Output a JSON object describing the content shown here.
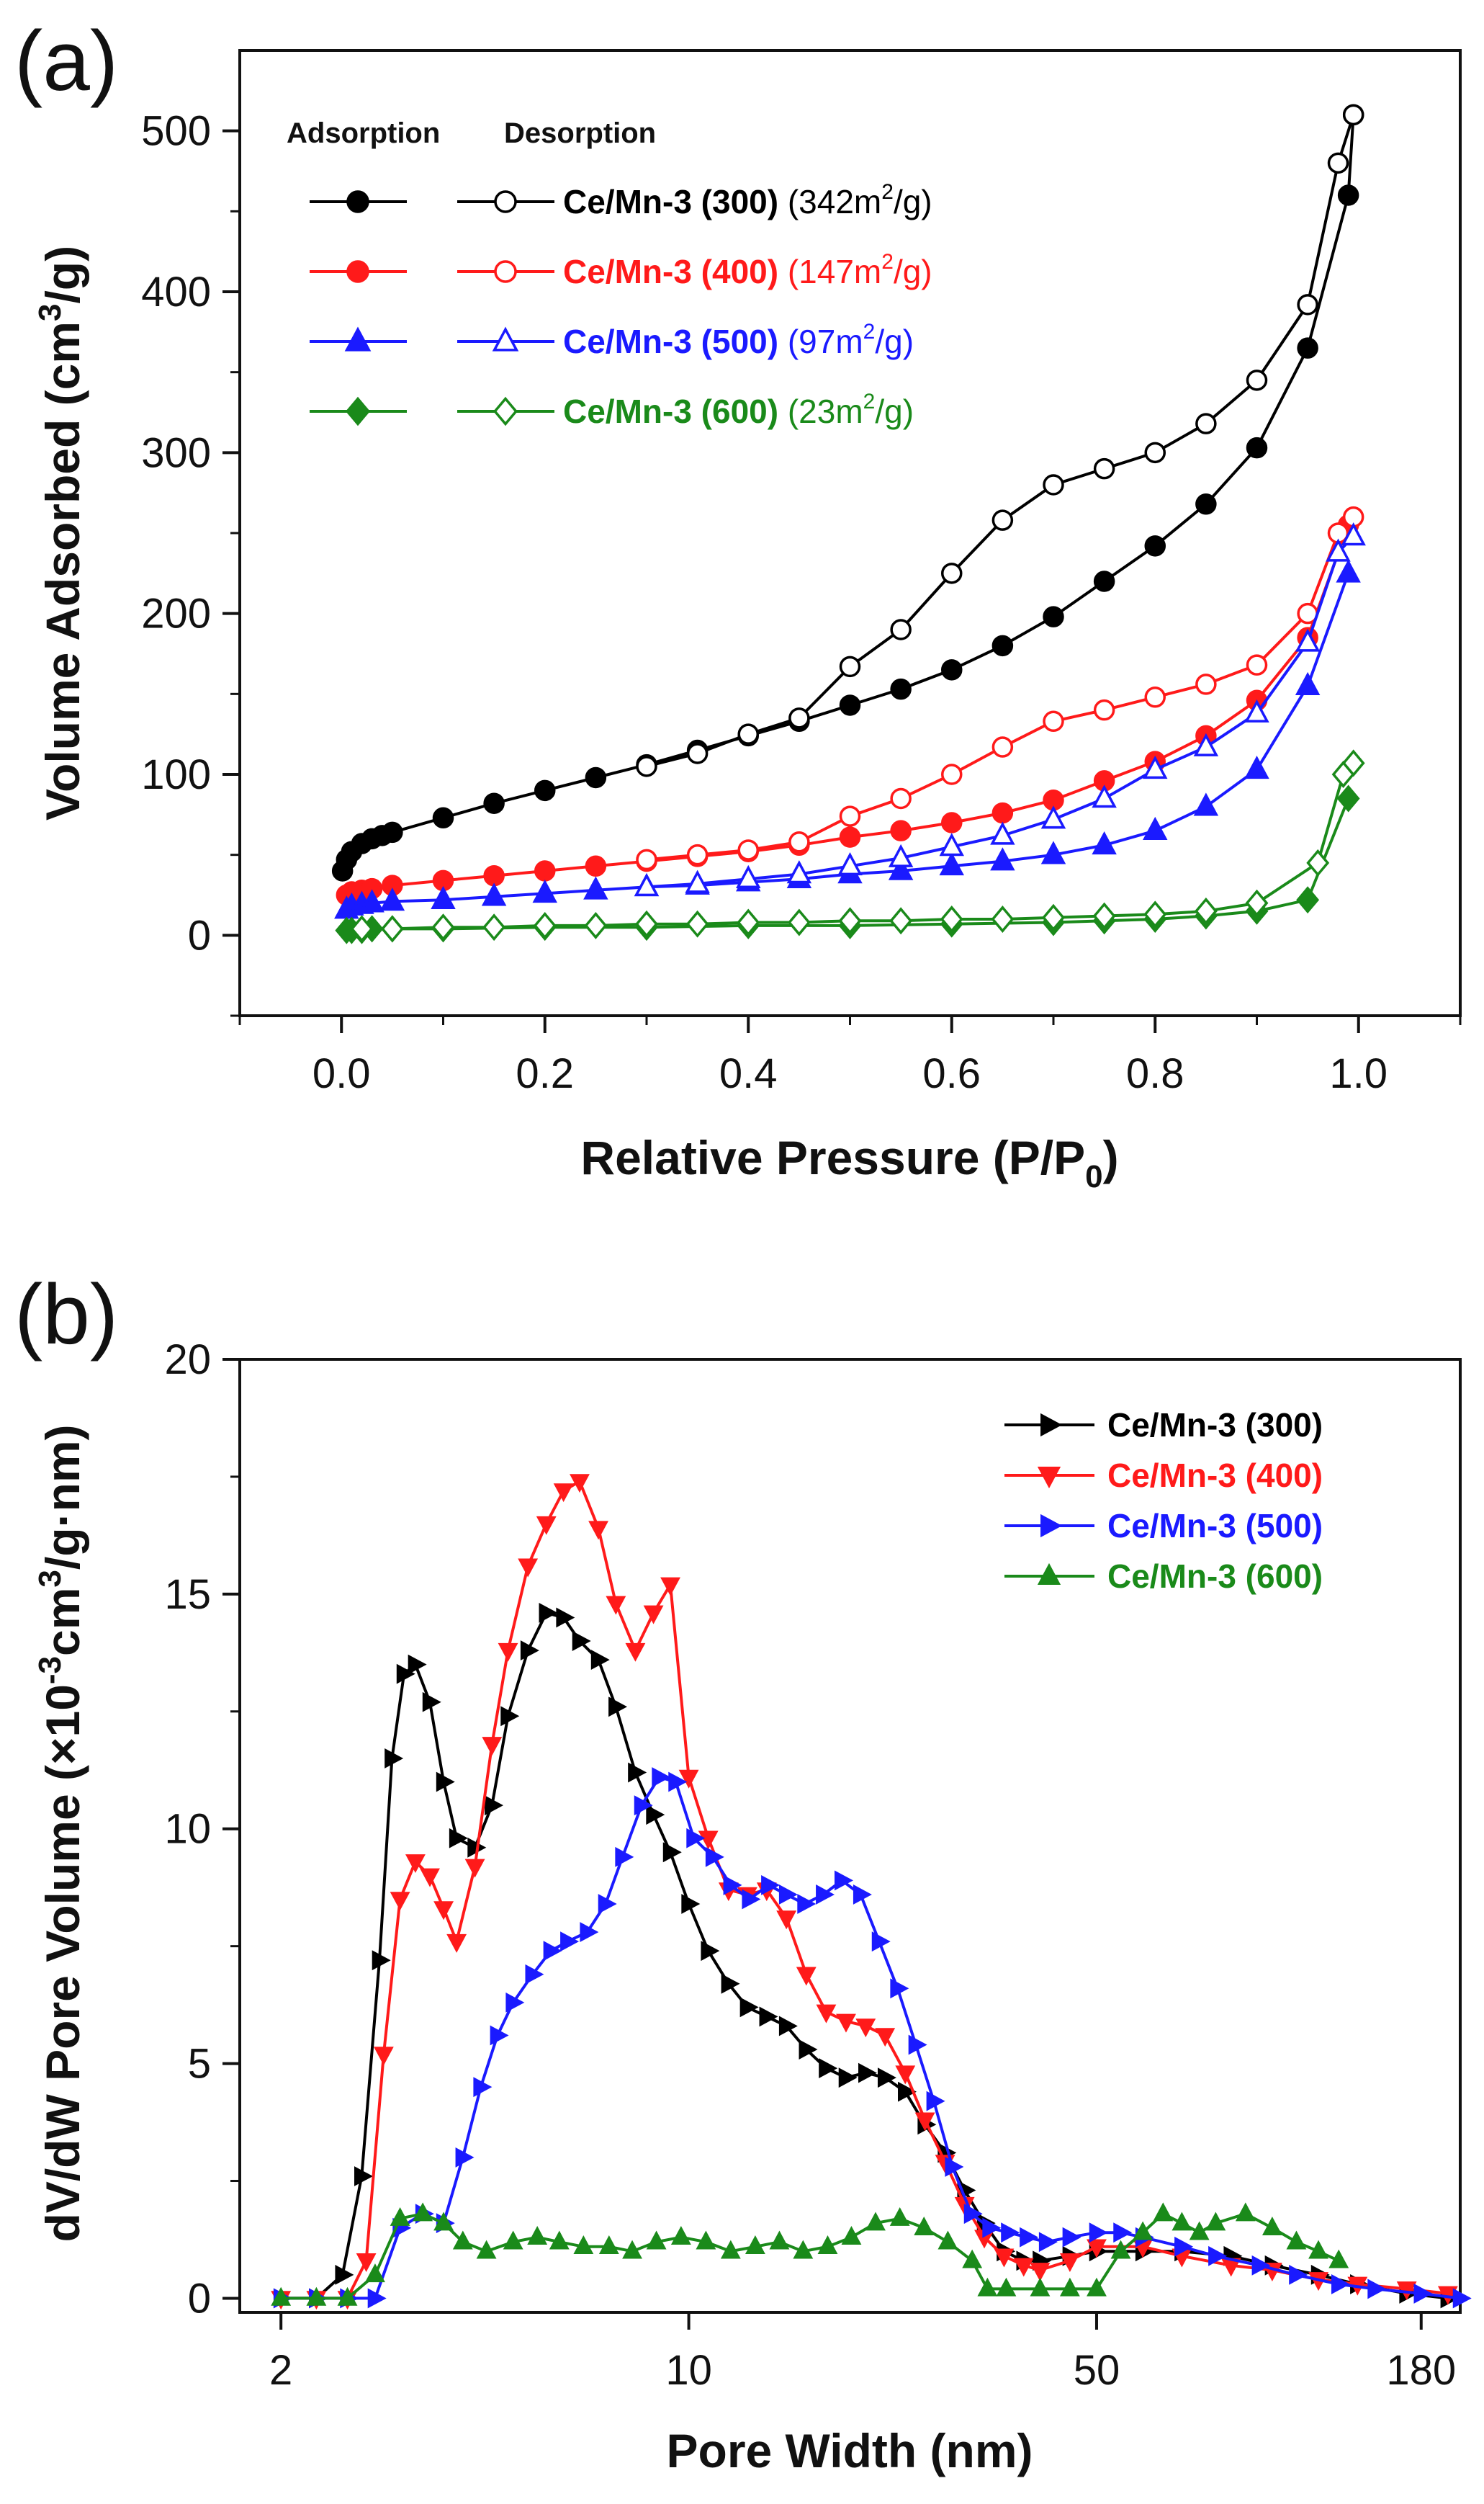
{
  "chart_data": [
    {
      "panel_label": "(a)",
      "type": "line",
      "xlabel": "Relative Pressure (P/P",
      "xlabel_subscript": "0",
      "xlabel_suffix": ")",
      "ylabel": "Volume Adsorbed (cm",
      "ylabel_superscript": "3",
      "ylabel_suffix": "/g)",
      "xlim": [
        -0.1,
        1.1
      ],
      "ylim": [
        -50,
        550
      ],
      "x_ticks": [
        0.0,
        0.2,
        0.4,
        0.6,
        0.8,
        1.0
      ],
      "x_tick_labels": [
        "0.0",
        "0.2",
        "0.4",
        "0.6",
        "0.8",
        "1.0"
      ],
      "y_ticks": [
        0,
        100,
        200,
        300,
        400,
        500
      ],
      "y_tick_labels": [
        "0",
        "100",
        "200",
        "300",
        "400",
        "500"
      ],
      "legend": {
        "header_adsorption": "Adsorption",
        "header_desorption": "Desorption",
        "entries": [
          {
            "label": "Ce/Mn-3 (300)",
            "area_prefix": "(342m",
            "area_sup": "2",
            "area_suffix": "/g)",
            "color": "#000000"
          },
          {
            "label": "Ce/Mn-3 (400)",
            "area_prefix": "(147m",
            "area_sup": "2",
            "area_suffix": "/g)",
            "color": "#ff1a1a"
          },
          {
            "label": "Ce/Mn-3 (500)",
            "area_prefix": "(97m",
            "area_sup": "2",
            "area_suffix": "/g)",
            "color": "#1a1aff"
          },
          {
            "label": "Ce/Mn-3 (600)",
            "area_prefix": "(23m",
            "area_sup": "2",
            "area_suffix": "/g)",
            "color": "#1a8a1a"
          }
        ]
      },
      "series": [
        {
          "name": "Ce/Mn-3 (300)",
          "branch": "Adsorption",
          "marker": "circle-filled",
          "color": "#000000",
          "x": [
            0.001,
            0.005,
            0.01,
            0.02,
            0.03,
            0.04,
            0.05,
            0.1,
            0.15,
            0.2,
            0.25,
            0.3,
            0.35,
            0.4,
            0.45,
            0.5,
            0.55,
            0.6,
            0.65,
            0.7,
            0.75,
            0.8,
            0.85,
            0.9,
            0.95,
            0.99,
            0.995
          ],
          "y": [
            40,
            47,
            52,
            57,
            60,
            62,
            64,
            73,
            82,
            90,
            98,
            106,
            115,
            124,
            133,
            143,
            153,
            165,
            180,
            198,
            220,
            242,
            268,
            303,
            365,
            460,
            510
          ]
        },
        {
          "name": "Ce/Mn-3 (300)",
          "branch": "Desorption",
          "marker": "circle-open",
          "color": "#000000",
          "x": [
            0.995,
            0.98,
            0.95,
            0.9,
            0.85,
            0.8,
            0.75,
            0.7,
            0.65,
            0.6,
            0.55,
            0.5,
            0.45,
            0.4,
            0.35,
            0.3
          ],
          "y": [
            510,
            480,
            392,
            345,
            318,
            300,
            290,
            280,
            258,
            225,
            190,
            167,
            135,
            125,
            113,
            105
          ]
        },
        {
          "name": "Ce/Mn-3 (400)",
          "branch": "Adsorption",
          "marker": "circle-filled",
          "color": "#ff1a1a",
          "x": [
            0.005,
            0.01,
            0.02,
            0.03,
            0.05,
            0.1,
            0.15,
            0.2,
            0.25,
            0.3,
            0.35,
            0.4,
            0.45,
            0.5,
            0.55,
            0.6,
            0.65,
            0.7,
            0.75,
            0.8,
            0.85,
            0.9,
            0.95,
            0.99
          ],
          "y": [
            25,
            27,
            28,
            29,
            31,
            34,
            37,
            40,
            43,
            46,
            49,
            52,
            56,
            61,
            65,
            70,
            76,
            84,
            96,
            108,
            124,
            146,
            185,
            255
          ]
        },
        {
          "name": "Ce/Mn-3 (400)",
          "branch": "Desorption",
          "marker": "circle-open",
          "color": "#ff1a1a",
          "x": [
            0.995,
            0.98,
            0.95,
            0.9,
            0.85,
            0.8,
            0.75,
            0.7,
            0.65,
            0.6,
            0.55,
            0.5,
            0.45,
            0.4,
            0.35,
            0.3
          ],
          "y": [
            260,
            250,
            200,
            168,
            156,
            148,
            140,
            133,
            117,
            100,
            85,
            74,
            58,
            53,
            50,
            47
          ]
        },
        {
          "name": "Ce/Mn-3 (500)",
          "branch": "Adsorption",
          "marker": "triangle-filled",
          "color": "#1a1aff",
          "x": [
            0.005,
            0.01,
            0.02,
            0.03,
            0.05,
            0.1,
            0.15,
            0.2,
            0.25,
            0.3,
            0.35,
            0.4,
            0.45,
            0.5,
            0.55,
            0.6,
            0.65,
            0.7,
            0.75,
            0.8,
            0.85,
            0.9,
            0.95,
            0.99
          ],
          "y": [
            16,
            18,
            19,
            20,
            21,
            22,
            24,
            26,
            28,
            30,
            31,
            33,
            35,
            38,
            40,
            43,
            46,
            50,
            56,
            65,
            80,
            103,
            155,
            225
          ]
        },
        {
          "name": "Ce/Mn-3 (500)",
          "branch": "Desorption",
          "marker": "triangle-open",
          "color": "#1a1aff",
          "x": [
            0.995,
            0.98,
            0.95,
            0.9,
            0.85,
            0.8,
            0.75,
            0.7,
            0.65,
            0.6,
            0.55,
            0.5,
            0.45,
            0.4,
            0.35,
            0.3
          ],
          "y": [
            248,
            238,
            182,
            138,
            117,
            103,
            85,
            72,
            62,
            55,
            48,
            43,
            38,
            35,
            32,
            30
          ]
        },
        {
          "name": "Ce/Mn-3 (600)",
          "branch": "Adsorption",
          "marker": "diamond-filled",
          "color": "#1a8a1a",
          "x": [
            0.005,
            0.01,
            0.02,
            0.03,
            0.05,
            0.1,
            0.2,
            0.3,
            0.4,
            0.5,
            0.6,
            0.7,
            0.75,
            0.8,
            0.85,
            0.9,
            0.95,
            0.99
          ],
          "y": [
            3,
            3,
            3,
            4,
            4,
            4,
            5,
            5,
            6,
            6,
            7,
            8,
            9,
            10,
            12,
            15,
            22,
            85
          ]
        },
        {
          "name": "Ce/Mn-3 (600)",
          "branch": "Desorption",
          "marker": "diamond-open",
          "color": "#1a8a1a",
          "x": [
            0.995,
            0.985,
            0.96,
            0.9,
            0.85,
            0.8,
            0.75,
            0.7,
            0.65,
            0.6,
            0.55,
            0.5,
            0.45,
            0.4,
            0.35,
            0.3,
            0.25,
            0.2,
            0.15,
            0.1,
            0.05,
            0.02
          ],
          "y": [
            107,
            100,
            45,
            20,
            15,
            13,
            12,
            11,
            10,
            10,
            9,
            9,
            8,
            8,
            7,
            7,
            6,
            6,
            5,
            5,
            4,
            4
          ]
        }
      ]
    },
    {
      "panel_label": "(b)",
      "type": "line",
      "xlabel": "Pore Width (nm)",
      "ylabel": "dV/dW Pore Volume (×10",
      "ylabel_superscript1": "-3",
      "ylabel_mid": "cm",
      "ylabel_superscript2": "3",
      "ylabel_suffix": "/g·nm)",
      "x_scale": "log",
      "xlim": [
        1.7,
        210
      ],
      "ylim": [
        -0.3,
        20
      ],
      "x_ticks": [
        2,
        10,
        50,
        180
      ],
      "x_tick_labels": [
        "2",
        "10",
        "50",
        "180"
      ],
      "y_ticks": [
        0,
        5,
        10,
        15,
        20
      ],
      "y_tick_labels": [
        "0",
        "5",
        "10",
        "15",
        "20"
      ],
      "legend_position": "top-right",
      "series": [
        {
          "name": "Ce/Mn-3 (300)",
          "color": "#000000",
          "marker": "triangle-right",
          "x": [
            2.0,
            2.3,
            2.55,
            2.75,
            2.95,
            3.1,
            3.25,
            3.4,
            3.6,
            3.8,
            4.0,
            4.3,
            4.6,
            4.9,
            5.3,
            5.7,
            6.1,
            6.5,
            7.0,
            7.5,
            8.1,
            8.7,
            9.3,
            10.0,
            10.8,
            11.7,
            12.6,
            13.6,
            14.7,
            15.9,
            17.2,
            18.6,
            20.1,
            21.7,
            23.5,
            25.4,
            27.5,
            29.7,
            32.1,
            34.7,
            37.5,
            40,
            45,
            50,
            60,
            70,
            85,
            100,
            120,
            140,
            170,
            200
          ],
          "x_values_note": "",
          "y": [
            0,
            0,
            0.5,
            2.6,
            7.2,
            11.5,
            13.3,
            13.5,
            12.7,
            11.0,
            9.8,
            9.6,
            10.5,
            12.4,
            13.8,
            14.6,
            14.5,
            14.0,
            13.6,
            12.6,
            11.2,
            10.3,
            9.5,
            8.4,
            7.4,
            6.7,
            6.2,
            6.0,
            5.8,
            5.3,
            4.9,
            4.7,
            4.8,
            4.7,
            4.4,
            3.7,
            3.1,
            2.3,
            1.6,
            1.0,
            0.8,
            0.8,
            0.9,
            1.0,
            1.0,
            1.0,
            0.9,
            0.7,
            0.5,
            0.3,
            0.1,
            0.0
          ]
        },
        {
          "name": "Ce/Mn-3 (400)",
          "color": "#ff1a1a",
          "marker": "triangle-down",
          "x": [
            2.0,
            2.3,
            2.6,
            2.8,
            3.0,
            3.2,
            3.4,
            3.6,
            3.8,
            4.0,
            4.3,
            4.6,
            4.9,
            5.3,
            5.7,
            6.1,
            6.5,
            7.0,
            7.5,
            8.1,
            8.7,
            9.3,
            10.0,
            10.8,
            11.7,
            12.6,
            13.6,
            14.7,
            15.9,
            17.2,
            18.6,
            20.1,
            21.7,
            23.5,
            25.4,
            27.5,
            29.7,
            32.1,
            34.7,
            37.5,
            40,
            45,
            50,
            60,
            70,
            85,
            100,
            120,
            140,
            170,
            200
          ],
          "y": [
            0,
            0,
            0,
            0.8,
            5.2,
            8.5,
            9.3,
            9.0,
            8.3,
            7.6,
            9.2,
            11.8,
            13.8,
            15.6,
            16.5,
            17.2,
            17.4,
            16.4,
            14.8,
            13.8,
            14.6,
            15.2,
            11.1,
            9.8,
            8.7,
            8.6,
            8.7,
            8.1,
            6.9,
            6.1,
            5.9,
            5.8,
            5.6,
            4.8,
            3.8,
            2.9,
            2.0,
            1.3,
            0.9,
            0.7,
            0.6,
            0.8,
            1.1,
            1.1,
            0.9,
            0.7,
            0.6,
            0.4,
            0.3,
            0.2,
            0.1
          ]
        },
        {
          "name": "Ce/Mn-3 (500)",
          "color": "#1a1aff",
          "marker": "triangle-right",
          "x": [
            2.0,
            2.3,
            2.6,
            2.9,
            3.2,
            3.5,
            3.8,
            4.1,
            4.4,
            4.7,
            5.0,
            5.4,
            5.8,
            6.2,
            6.7,
            7.2,
            7.7,
            8.3,
            8.9,
            9.5,
            10.2,
            11.0,
            11.8,
            12.7,
            13.7,
            14.7,
            15.8,
            17.0,
            18.3,
            19.7,
            21.2,
            22.8,
            24.5,
            26.3,
            28.3,
            30.5,
            32.8,
            35.3,
            38,
            41,
            45,
            50,
            55,
            60,
            70,
            80,
            95,
            110,
            130,
            150,
            180,
            210
          ],
          "y": [
            0,
            0,
            0,
            0,
            1.5,
            1.8,
            1.6,
            3.0,
            4.5,
            5.6,
            6.3,
            6.9,
            7.4,
            7.6,
            7.8,
            8.4,
            9.4,
            10.5,
            11.1,
            11.0,
            9.8,
            9.4,
            8.8,
            8.5,
            8.8,
            8.6,
            8.4,
            8.6,
            8.9,
            8.6,
            7.6,
            6.6,
            5.4,
            4.2,
            2.8,
            1.8,
            1.5,
            1.4,
            1.3,
            1.2,
            1.3,
            1.4,
            1.4,
            1.3,
            1.1,
            0.9,
            0.7,
            0.5,
            0.3,
            0.2,
            0.1,
            0.0
          ]
        },
        {
          "name": "Ce/Mn-3 (600)",
          "color": "#1a8a1a",
          "marker": "triangle-up",
          "x": [
            2.0,
            2.3,
            2.6,
            2.9,
            3.2,
            3.5,
            3.8,
            4.1,
            4.5,
            5.0,
            5.5,
            6.0,
            6.6,
            7.3,
            8.0,
            8.8,
            9.7,
            10.7,
            11.8,
            13.0,
            14.3,
            15.7,
            17.3,
            19.0,
            20.9,
            23.0,
            25.3,
            27.8,
            30.6,
            32.5,
            35,
            40,
            45,
            50,
            55,
            60,
            65,
            70,
            75,
            80,
            90,
            100,
            110,
            120,
            130
          ],
          "y": [
            0,
            0,
            0,
            0.5,
            1.7,
            1.8,
            1.6,
            1.2,
            1.0,
            1.2,
            1.3,
            1.2,
            1.1,
            1.1,
            1.0,
            1.2,
            1.3,
            1.2,
            1.0,
            1.1,
            1.2,
            1.0,
            1.1,
            1.3,
            1.6,
            1.7,
            1.5,
            1.2,
            0.8,
            0.2,
            0.2,
            0.2,
            0.2,
            0.2,
            1.0,
            1.4,
            1.8,
            1.6,
            1.4,
            1.6,
            1.8,
            1.5,
            1.2,
            1.0,
            0.8
          ]
        }
      ]
    }
  ]
}
